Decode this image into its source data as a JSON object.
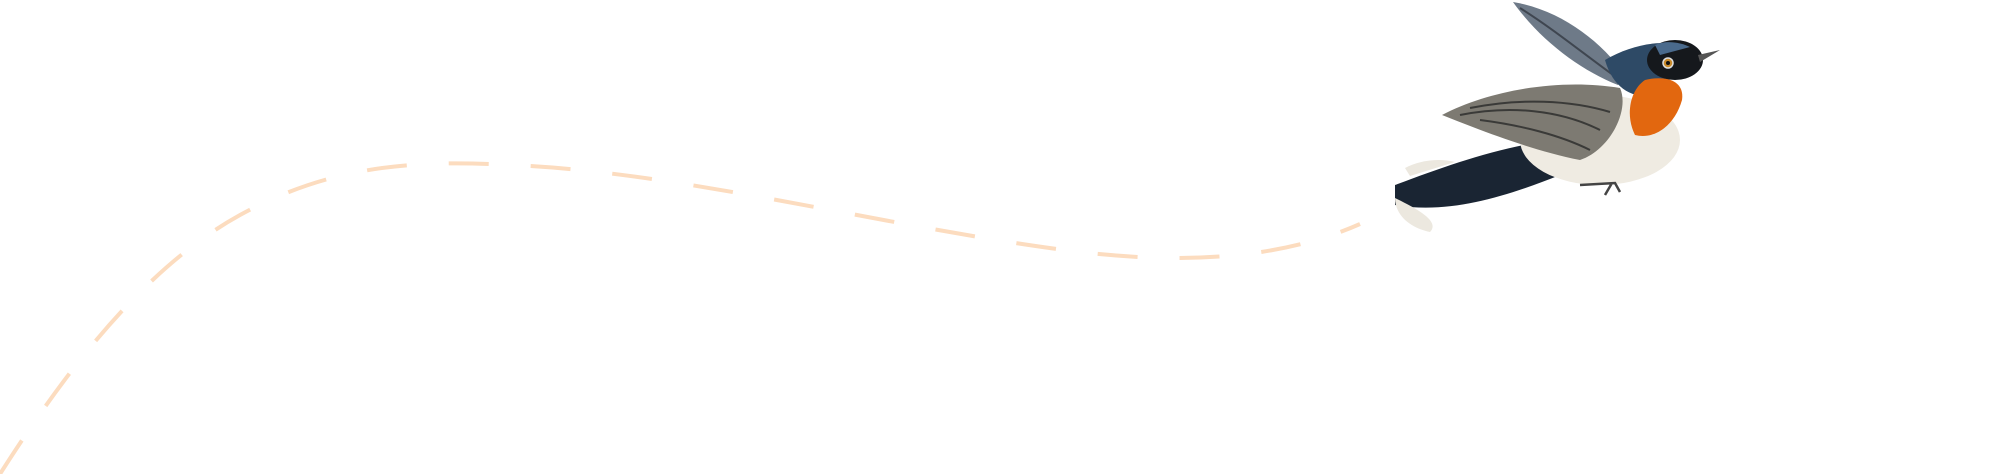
{
  "illustration": {
    "subject": "bird-in-flight",
    "colors": {
      "background": "#ffffff",
      "flight_path": "#fcdcbf",
      "bird_back": "#2e4a66",
      "bird_throat": "#e2670f",
      "bird_belly": "#efebe2",
      "bird_wing": "#7d7a72",
      "bird_head_mask": "#15181c"
    }
  }
}
